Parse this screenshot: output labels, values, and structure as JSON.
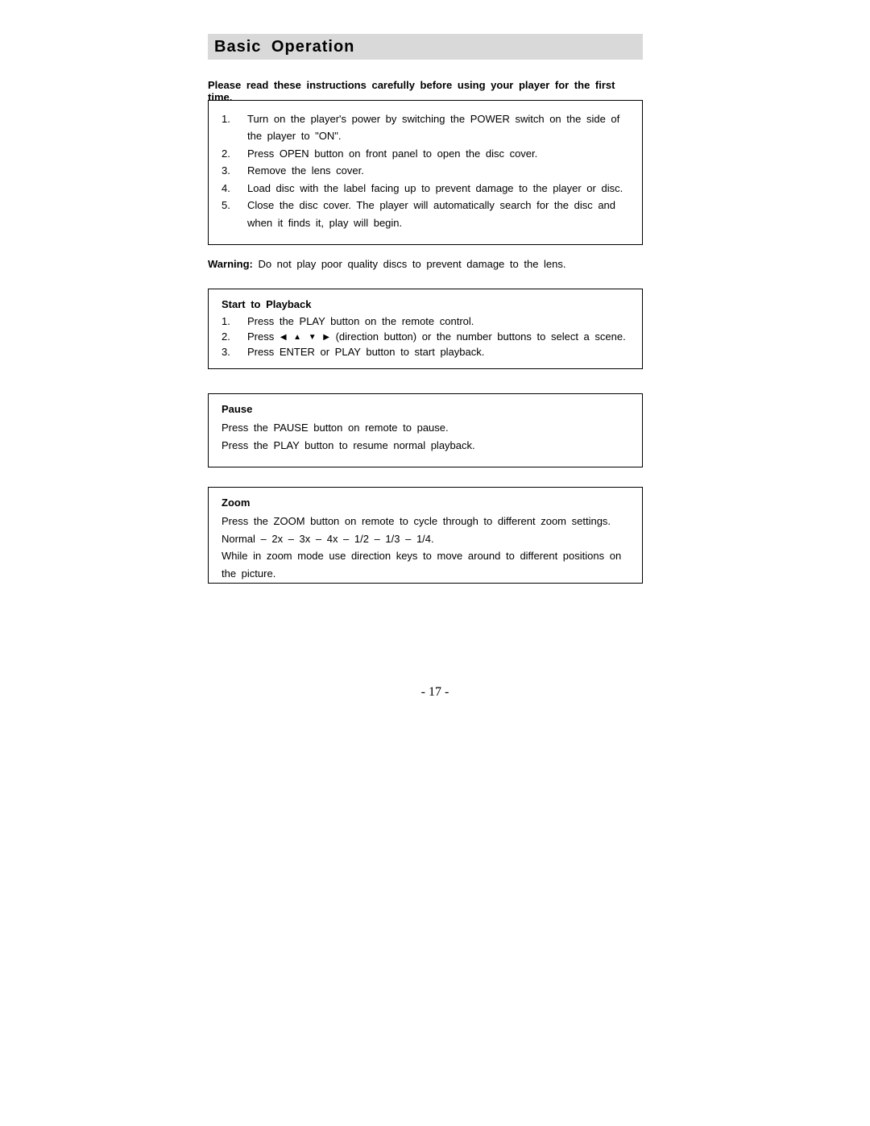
{
  "title": "Basic  Operation",
  "intro": "Please read these instructions carefully before using your player for the first time.",
  "box1": {
    "items": [
      "Turn on the player's power by switching the POWER switch on the side of the player to \"ON\".",
      "Press OPEN button on front panel to open the disc cover.",
      "Remove the lens cover.",
      "Load disc with the label facing up to prevent damage to the player or disc.",
      "Close the disc cover. The player will automatically search for the disc and when it finds it, play will begin."
    ]
  },
  "warning_label": "Warning:",
  "warning_text": " Do not play poor quality discs to prevent damage to the lens.",
  "box2": {
    "title": "Start to Playback",
    "item1": "Press the PLAY button on the remote control.",
    "item2_prefix": "Press ",
    "item2_suffix": " (direction button) or the number buttons to select a scene.",
    "item3": "Press ENTER or PLAY button to start playback."
  },
  "box3": {
    "title": "Pause",
    "line1": "Press the PAUSE button on remote to pause.",
    "line2": "Press the PLAY button to resume normal playback."
  },
  "box4": {
    "title": "Zoom",
    "line1": "Press the ZOOM button on remote to cycle through to different zoom settings.",
    "line2": "Normal – 2x – 3x – 4x – 1/2 – 1/3 – 1/4.",
    "line3": "While in zoom mode use direction keys to move around to different positions on the picture."
  },
  "page_number": "- 17 -",
  "colors": {
    "title_bg": "#d9d9d9",
    "border": "#000000",
    "text": "#000000",
    "background": "#ffffff"
  },
  "fonts": {
    "body_family": "Arial",
    "body_size_pt": 10,
    "title_size_pt": 15,
    "pagenum_family": "Times New Roman"
  },
  "arrows": {
    "left": "◀",
    "up": "▲",
    "down": "▼",
    "right": "▶"
  }
}
